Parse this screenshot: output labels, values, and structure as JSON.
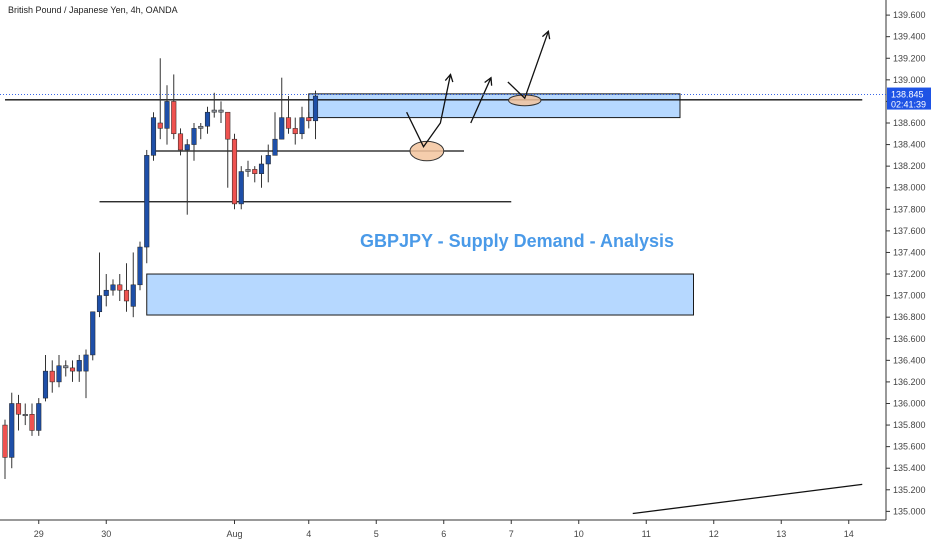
{
  "header": {
    "symbol": "British Pound / Japanese Yen, 4h, OANDA"
  },
  "annotation": "GBPJPY - Supply Demand - Analysis",
  "price_badge": {
    "price": "138.845",
    "countdown": "02:41:39",
    "color": "#1e53e5"
  },
  "colors": {
    "up": "#1e4fa8",
    "down": "#ef5350",
    "neutral": "#8a8f99",
    "zone_fill": "#9ecbff",
    "zone_stroke": "#1a1a1a",
    "ellipse": "#f3c49e"
  },
  "chart_data": {
    "type": "candlestick",
    "ylim": [
      134.92,
      139.74
    ],
    "y_ticks": [
      "139.600",
      "139.400",
      "139.200",
      "139.000",
      "138.800",
      "138.600",
      "138.400",
      "138.200",
      "138.000",
      "137.800",
      "137.600",
      "137.400",
      "137.200",
      "137.000",
      "136.800",
      "136.600",
      "136.400",
      "136.200",
      "136.000",
      "135.800",
      "135.600",
      "135.400",
      "135.200",
      "135.000"
    ],
    "x_labels": [
      {
        "label": "29",
        "idx": 5
      },
      {
        "label": "30",
        "idx": 15
      },
      {
        "label": "Aug",
        "idx": 34
      },
      {
        "label": "4",
        "idx": 45
      },
      {
        "label": "5",
        "idx": 55
      },
      {
        "label": "6",
        "idx": 65
      },
      {
        "label": "7",
        "idx": 75
      },
      {
        "label": "10",
        "idx": 85
      },
      {
        "label": "11",
        "idx": 95
      },
      {
        "label": "12",
        "idx": 105
      },
      {
        "label": "13",
        "idx": 115
      },
      {
        "label": "14",
        "idx": 125
      }
    ],
    "candles": [
      [
        135.8,
        135.5,
        135.85,
        135.3
      ],
      [
        135.5,
        136.0,
        136.1,
        135.4
      ],
      [
        136.0,
        135.9,
        136.08,
        135.75
      ],
      [
        135.9,
        135.9,
        136.0,
        135.8
      ],
      [
        135.9,
        135.75,
        136.0,
        135.7
      ],
      [
        135.75,
        136.0,
        136.05,
        135.7
      ],
      [
        136.05,
        136.3,
        136.45,
        136.02
      ],
      [
        136.3,
        136.2,
        136.4,
        136.1
      ],
      [
        136.2,
        136.35,
        136.45,
        136.15
      ],
      [
        136.35,
        136.33,
        136.4,
        136.25
      ],
      [
        136.33,
        136.3,
        136.4,
        136.2
      ],
      [
        136.3,
        136.4,
        136.45,
        136.2
      ],
      [
        136.3,
        136.45,
        136.5,
        136.05
      ],
      [
        136.45,
        136.85,
        136.85,
        136.4
      ],
      [
        136.85,
        137.0,
        137.4,
        136.8
      ],
      [
        137.0,
        137.05,
        137.2,
        136.9
      ],
      [
        137.05,
        137.1,
        137.15,
        137.0
      ],
      [
        137.1,
        137.05,
        137.2,
        136.95
      ],
      [
        137.05,
        136.95,
        137.3,
        136.85
      ],
      [
        136.9,
        137.1,
        137.4,
        136.8
      ],
      [
        137.1,
        137.45,
        137.5,
        137.05
      ],
      [
        137.45,
        138.3,
        138.35,
        137.3
      ],
      [
        138.3,
        138.65,
        138.7,
        138.25
      ],
      [
        138.6,
        138.55,
        139.2,
        138.45
      ],
      [
        138.55,
        138.8,
        138.95,
        138.4
      ],
      [
        138.8,
        138.5,
        139.05,
        138.45
      ],
      [
        138.5,
        138.35,
        138.55,
        138.3
      ],
      [
        138.35,
        138.4,
        138.45,
        137.75
      ],
      [
        138.4,
        138.55,
        138.6,
        138.25
      ],
      [
        138.55,
        138.57,
        138.6,
        138.45
      ],
      [
        138.57,
        138.7,
        138.75,
        138.5
      ],
      [
        138.7,
        138.72,
        138.88,
        138.65
      ],
      [
        138.72,
        138.7,
        138.8,
        138.6
      ],
      [
        138.7,
        138.45,
        138.55,
        138.0
      ],
      [
        138.45,
        137.85,
        138.5,
        137.8
      ],
      [
        137.85,
        138.15,
        138.2,
        137.8
      ],
      [
        138.15,
        138.17,
        138.25,
        138.1
      ],
      [
        138.17,
        138.13,
        138.2,
        138.05
      ],
      [
        138.13,
        138.22,
        138.3,
        138.0
      ],
      [
        138.22,
        138.3,
        138.4,
        138.05
      ],
      [
        138.3,
        138.45,
        138.7,
        138.3
      ],
      [
        138.45,
        138.65,
        139.02,
        138.45
      ],
      [
        138.65,
        138.55,
        138.85,
        138.5
      ],
      [
        138.55,
        138.5,
        138.65,
        138.4
      ],
      [
        138.5,
        138.65,
        138.75,
        138.45
      ],
      [
        138.65,
        138.62,
        138.7,
        138.55
      ],
      [
        138.62,
        138.85,
        138.9,
        138.45
      ]
    ],
    "zones": [
      {
        "x1": 45,
        "x2": 100,
        "ytop": 138.87,
        "ybot": 138.65
      },
      {
        "x1": 21,
        "x2": 102,
        "ytop": 137.2,
        "ybot": 136.82
      }
    ],
    "hlines": [
      {
        "x1": 22,
        "x2": 68,
        "y": 138.34
      },
      {
        "x1": 14,
        "x2": 75,
        "y": 137.87
      },
      {
        "x1": 0,
        "x2": 127,
        "y": 138.815
      }
    ],
    "trend_line": {
      "x1": 93,
      "y1": 134.98,
      "x2": 127,
      "y2": 135.25
    },
    "ellipses": [
      {
        "cx": 62.5,
        "cy": 138.34,
        "rx": 2.5,
        "ry": 0.09
      },
      {
        "cx": 77,
        "cy": 138.81,
        "rx": 2.4,
        "ry": 0.05
      }
    ],
    "arrows": [
      [
        [
          59.5,
          138.7
        ],
        [
          62,
          138.38
        ],
        [
          64.5,
          138.6
        ],
        [
          66,
          139.05
        ]
      ],
      [
        [
          69,
          138.6
        ],
        [
          72,
          139.02
        ]
      ],
      [
        [
          74.5,
          138.98
        ],
        [
          77,
          138.83
        ],
        [
          80.5,
          139.45
        ]
      ]
    ]
  }
}
